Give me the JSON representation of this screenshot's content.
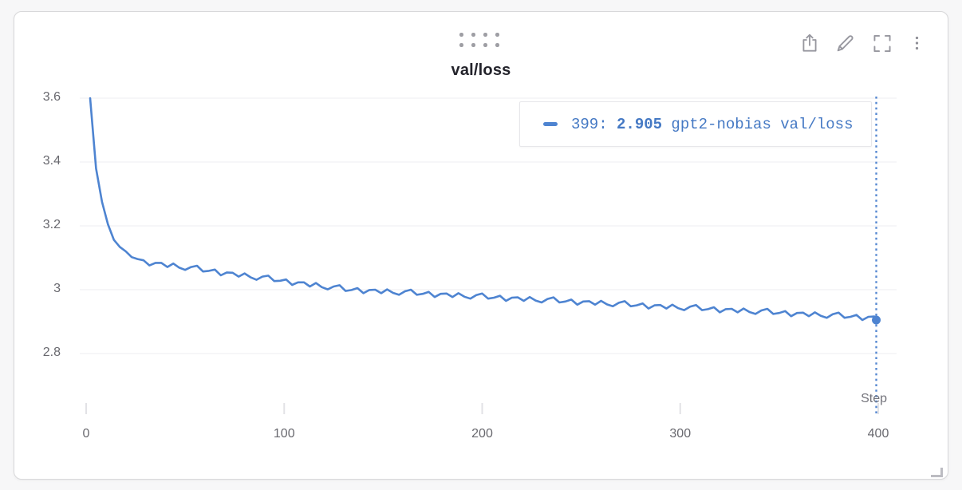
{
  "panel": {
    "title": "val/loss"
  },
  "toolbar": {
    "export_icon": "share-export-icon",
    "edit_icon": "pencil-icon",
    "fullscreen_icon": "fullscreen-icon",
    "menu_icon": "kebab-menu-icon"
  },
  "legend": {
    "step_label": "399: ",
    "value": "2.905",
    "run_name": " gpt2-nobias val/loss"
  },
  "axis": {
    "x_title": "Step"
  },
  "colors": {
    "line": "#4e84d1",
    "legend_text": "#4579c4",
    "crosshair": "#4e82cf",
    "grid": "#ededf0",
    "tick": "#e2e2e6"
  },
  "chart_data": {
    "type": "line",
    "title": "val/loss",
    "xlabel": "Step",
    "ylabel": "",
    "xlim": [
      0,
      410
    ],
    "ylim": [
      2.6,
      3.6
    ],
    "xticks": [
      0,
      100,
      200,
      300,
      400
    ],
    "yticks": [
      3.6,
      3.4,
      3.2,
      3,
      2.8
    ],
    "grid": "horizontal-only",
    "legend_position": "top-right",
    "highlight": {
      "step": 399,
      "value": 2.905
    },
    "series": [
      {
        "name": "gpt2-nobias val/loss",
        "color": "#4e84d1",
        "points": [
          [
            2,
            3.6
          ],
          [
            5,
            3.38
          ],
          [
            8,
            3.275
          ],
          [
            11,
            3.205
          ],
          [
            14,
            3.156
          ],
          [
            17,
            3.134
          ],
          [
            20,
            3.12
          ],
          [
            23,
            3.102
          ],
          [
            26,
            3.096
          ],
          [
            29,
            3.092
          ],
          [
            32,
            3.076
          ],
          [
            35,
            3.084
          ],
          [
            38,
            3.084
          ],
          [
            41,
            3.071
          ],
          [
            44,
            3.082
          ],
          [
            47,
            3.069
          ],
          [
            50,
            3.062
          ],
          [
            53,
            3.071
          ],
          [
            56,
            3.075
          ],
          [
            59,
            3.057
          ],
          [
            62,
            3.059
          ],
          [
            65,
            3.063
          ],
          [
            68,
            3.045
          ],
          [
            71,
            3.054
          ],
          [
            74,
            3.053
          ],
          [
            77,
            3.041
          ],
          [
            80,
            3.051
          ],
          [
            83,
            3.039
          ],
          [
            86,
            3.031
          ],
          [
            89,
            3.041
          ],
          [
            92,
            3.044
          ],
          [
            95,
            3.027
          ],
          [
            98,
            3.028
          ],
          [
            101,
            3.032
          ],
          [
            104,
            3.015
          ],
          [
            107,
            3.023
          ],
          [
            110,
            3.023
          ],
          [
            113,
            3.01
          ],
          [
            116,
            3.021
          ],
          [
            119,
            3.008
          ],
          [
            122,
            3.001
          ],
          [
            125,
            3.01
          ],
          [
            128,
            3.014
          ],
          [
            131,
            2.996
          ],
          [
            134,
            2.999
          ],
          [
            137,
            3.005
          ],
          [
            140,
            2.989
          ],
          [
            143,
            2.999
          ],
          [
            146,
            3.0
          ],
          [
            149,
            2.989
          ],
          [
            152,
            3.001
          ],
          [
            155,
            2.99
          ],
          [
            158,
            2.984
          ],
          [
            161,
            2.995
          ],
          [
            164,
            3.0
          ],
          [
            167,
            2.984
          ],
          [
            170,
            2.987
          ],
          [
            173,
            2.993
          ],
          [
            176,
            2.977
          ],
          [
            179,
            2.987
          ],
          [
            182,
            2.988
          ],
          [
            185,
            2.977
          ],
          [
            188,
            2.989
          ],
          [
            191,
            2.978
          ],
          [
            194,
            2.972
          ],
          [
            197,
            2.983
          ],
          [
            200,
            2.988
          ],
          [
            203,
            2.972
          ],
          [
            206,
            2.975
          ],
          [
            209,
            2.981
          ],
          [
            212,
            2.965
          ],
          [
            215,
            2.975
          ],
          [
            218,
            2.976
          ],
          [
            221,
            2.965
          ],
          [
            224,
            2.977
          ],
          [
            227,
            2.966
          ],
          [
            230,
            2.96
          ],
          [
            233,
            2.971
          ],
          [
            236,
            2.976
          ],
          [
            239,
            2.96
          ],
          [
            242,
            2.963
          ],
          [
            245,
            2.969
          ],
          [
            248,
            2.953
          ],
          [
            251,
            2.963
          ],
          [
            254,
            2.964
          ],
          [
            257,
            2.953
          ],
          [
            260,
            2.965
          ],
          [
            263,
            2.954
          ],
          [
            266,
            2.948
          ],
          [
            269,
            2.959
          ],
          [
            272,
            2.964
          ],
          [
            275,
            2.948
          ],
          [
            278,
            2.951
          ],
          [
            281,
            2.957
          ],
          [
            284,
            2.941
          ],
          [
            287,
            2.951
          ],
          [
            290,
            2.952
          ],
          [
            293,
            2.941
          ],
          [
            296,
            2.953
          ],
          [
            299,
            2.942
          ],
          [
            302,
            2.936
          ],
          [
            305,
            2.947
          ],
          [
            308,
            2.952
          ],
          [
            311,
            2.936
          ],
          [
            314,
            2.939
          ],
          [
            317,
            2.945
          ],
          [
            320,
            2.929
          ],
          [
            323,
            2.939
          ],
          [
            326,
            2.94
          ],
          [
            329,
            2.929
          ],
          [
            332,
            2.941
          ],
          [
            335,
            2.93
          ],
          [
            338,
            2.924
          ],
          [
            341,
            2.935
          ],
          [
            344,
            2.94
          ],
          [
            347,
            2.924
          ],
          [
            350,
            2.927
          ],
          [
            353,
            2.933
          ],
          [
            356,
            2.917
          ],
          [
            359,
            2.927
          ],
          [
            362,
            2.928
          ],
          [
            365,
            2.917
          ],
          [
            368,
            2.929
          ],
          [
            371,
            2.918
          ],
          [
            374,
            2.912
          ],
          [
            377,
            2.923
          ],
          [
            380,
            2.928
          ],
          [
            383,
            2.912
          ],
          [
            386,
            2.915
          ],
          [
            389,
            2.921
          ],
          [
            392,
            2.905
          ],
          [
            395,
            2.915
          ],
          [
            398,
            2.916
          ],
          [
            399,
            2.905
          ]
        ]
      }
    ]
  }
}
